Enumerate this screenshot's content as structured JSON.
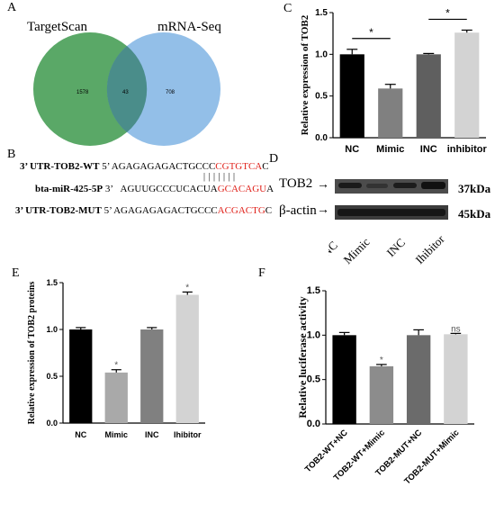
{
  "panels": {
    "A": {
      "letter": "A",
      "left_label": "TargetScan",
      "right_label": "mRNA-Seq",
      "left_only": "1578",
      "overlap": "43",
      "right_only": "708",
      "colors": {
        "left": "#5aa867",
        "right": "#93bfe8",
        "overlap": "#4a8d8a"
      }
    },
    "B": {
      "letter": "B",
      "row1": {
        "name": "3’ UTR-TOB2-WT",
        "prime": "5’",
        "black": "AGAGAGAGACTGCCC",
        "red": "CGTGTCA",
        "tail": "C"
      },
      "bars": "| | | | | | |",
      "row2": {
        "name": "bta-miR-425-5P",
        "prime": "3’",
        "black": "AGUUGCCCUCACUA",
        "red": "GCACAGU",
        "tail": "A"
      },
      "row3": {
        "name": "3’ UTR-TOB2-MUT",
        "prime": "5’",
        "black": "AGAGAGAGACTGCCC",
        "red": "ACGACTG",
        "tail": "C"
      }
    },
    "C": {
      "letter": "C"
    },
    "D": {
      "letter": "D",
      "row1_label": "TOB2",
      "row1_kda": "37kDa",
      "row2_label": "β-actin",
      "row2_kda": "45kDa",
      "lanes": [
        "NC",
        "Mimic",
        "INC",
        "Ihibitor"
      ]
    },
    "E": {
      "letter": "E"
    },
    "F": {
      "letter": "F"
    }
  },
  "chart_data": [
    {
      "panel": "C",
      "type": "bar",
      "categories": [
        "NC",
        "Mimic",
        "INC",
        "inhibitor"
      ],
      "values": [
        1.0,
        0.59,
        1.0,
        1.26
      ],
      "errors": [
        0.06,
        0.05,
        0.01,
        0.03
      ],
      "colors": [
        "#000000",
        "#808080",
        "#5f5f5f",
        "#d3d3d3"
      ],
      "ylabel": "Relative expression of TOB2",
      "ylim": [
        0.0,
        1.5
      ],
      "yticks": [
        "0.0",
        "0.5",
        "1.0",
        "1.5"
      ],
      "significance": [
        {
          "from": 0,
          "to": 1,
          "label": "*"
        },
        {
          "from": 2,
          "to": 3,
          "label": "*"
        }
      ]
    },
    {
      "panel": "E",
      "type": "bar",
      "categories": [
        "NC",
        "Mimic",
        "INC",
        "Ihibitor"
      ],
      "values": [
        1.0,
        0.54,
        1.0,
        1.37
      ],
      "errors": [
        0.02,
        0.03,
        0.02,
        0.03
      ],
      "colors": [
        "#000000",
        "#a9a9a9",
        "#808080",
        "#d3d3d3"
      ],
      "ylabel": "Relative expression of TOB2 proteins",
      "ylim": [
        0.0,
        1.5
      ],
      "yticks": [
        "0.0",
        "0.5",
        "1.0",
        "1.5"
      ],
      "bar_labels": [
        "",
        "*",
        "",
        "*"
      ]
    },
    {
      "panel": "F",
      "type": "bar",
      "categories": [
        "TOB2-WT+NC",
        "TOB2-WT+Mimic",
        "TOB2-MUT+NC",
        "TOB2-MUT+Mimic"
      ],
      "values": [
        1.0,
        0.65,
        1.0,
        1.01
      ],
      "errors": [
        0.03,
        0.02,
        0.06,
        0.01
      ],
      "colors": [
        "#000000",
        "#8c8c8c",
        "#6b6b6b",
        "#d3d3d3"
      ],
      "ylabel": "Relative luciferase activity",
      "ylim": [
        0.0,
        1.5
      ],
      "yticks": [
        "0.0",
        "0.5",
        "1.0",
        "1.5"
      ],
      "bar_labels": [
        "",
        "*",
        "",
        "ns"
      ]
    }
  ]
}
